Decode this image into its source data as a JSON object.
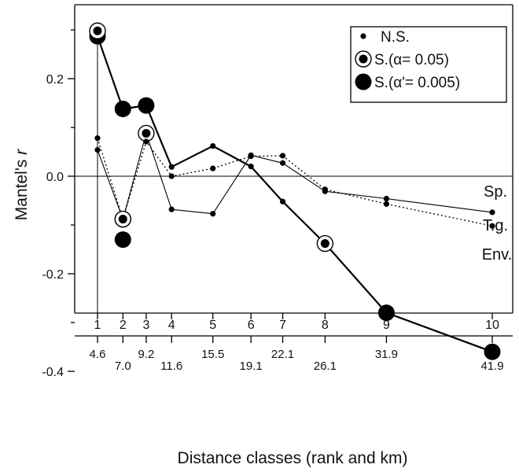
{
  "chart_data": {
    "type": "line",
    "xlabel": "Distance classes  (rank and km)",
    "ylabel_prefix": "Mantel's ",
    "ylabel_italic": "r",
    "ylim": [
      -0.4,
      0.35
    ],
    "yticks": [
      {
        "value": 0.2,
        "label": "0.2"
      },
      {
        "value": 0.0,
        "label": "0.0"
      },
      {
        "value": -0.2,
        "label": "-0.2"
      },
      {
        "value": -0.4,
        "label": "-0.4"
      }
    ],
    "x_ranks": [
      1,
      2,
      3,
      4,
      5,
      6,
      7,
      8,
      9,
      10
    ],
    "x_rank_labels": [
      "1",
      "2",
      "3",
      "4",
      "5",
      "6",
      "7",
      "8",
      "9",
      "10"
    ],
    "x_km": [
      4.6,
      7.0,
      9.2,
      11.6,
      15.5,
      19.1,
      22.1,
      26.1,
      31.9,
      41.9
    ],
    "x_km_labels": [
      "4.6",
      "7.0",
      "9.2",
      "11.6",
      "15.5",
      "19.1",
      "22.1",
      "26.1",
      "31.9",
      "41.9"
    ],
    "legend": {
      "placement": "top-right",
      "entries": [
        {
          "symbol": "ns",
          "label": "N.S."
        },
        {
          "symbol": "s05",
          "label_prefix": "S.(",
          "label_alpha": "α",
          "label_suffix": "= 0.05)"
        },
        {
          "symbol": "s005",
          "label_prefix": "S.(",
          "label_alpha": "α",
          "label_suffix": "'= 0.005)"
        }
      ]
    },
    "series": [
      {
        "name": "Sp.",
        "line_style": "solid",
        "points": [
          {
            "x": 4.6,
            "y": 0.054,
            "sig": "ns"
          },
          {
            "x": 7.0,
            "y": -0.088,
            "sig": "s05"
          },
          {
            "x": 9.2,
            "y": 0.088,
            "sig": "s05"
          },
          {
            "x": 11.6,
            "y": -0.068,
            "sig": "ns"
          },
          {
            "x": 15.5,
            "y": -0.077,
            "sig": "ns"
          },
          {
            "x": 19.1,
            "y": 0.043,
            "sig": "ns"
          },
          {
            "x": 22.1,
            "y": 0.027,
            "sig": "ns"
          },
          {
            "x": 26.1,
            "y": -0.031,
            "sig": "ns"
          },
          {
            "x": 31.9,
            "y": -0.046,
            "sig": "ns"
          },
          {
            "x": 41.9,
            "y": -0.074,
            "sig": "ns"
          }
        ]
      },
      {
        "name": "T.g.",
        "line_style": "dotted",
        "points": [
          {
            "x": 4.6,
            "y": 0.078,
            "sig": "ns"
          },
          {
            "x": 7.0,
            "y": -0.088,
            "sig": "s05"
          },
          {
            "x": 9.2,
            "y": 0.071,
            "sig": "ns"
          },
          {
            "x": 11.6,
            "y": 0.0,
            "sig": "ns"
          },
          {
            "x": 15.5,
            "y": 0.016,
            "sig": "ns"
          },
          {
            "x": 19.1,
            "y": 0.041,
            "sig": "ns"
          },
          {
            "x": 22.1,
            "y": 0.042,
            "sig": "ns"
          },
          {
            "x": 26.1,
            "y": -0.027,
            "sig": "ns"
          },
          {
            "x": 31.9,
            "y": -0.057,
            "sig": "ns"
          },
          {
            "x": 41.9,
            "y": -0.102,
            "sig": "ns"
          }
        ]
      },
      {
        "name": "Env.",
        "line_style": "solid-thick",
        "points": [
          {
            "x": 4.6,
            "y": 0.287,
            "sig": "s005"
          },
          {
            "x": 7.0,
            "y": 0.138,
            "sig": "s005"
          },
          {
            "x": 9.2,
            "y": 0.145,
            "sig": "s005"
          },
          {
            "x": 11.6,
            "y": 0.019,
            "sig": "ns"
          },
          {
            "x": 15.5,
            "y": 0.062,
            "sig": "ns"
          },
          {
            "x": 19.1,
            "y": 0.02,
            "sig": "ns"
          },
          {
            "x": 22.1,
            "y": -0.052,
            "sig": "ns"
          },
          {
            "x": 26.1,
            "y": -0.138,
            "sig": "s05"
          },
          {
            "x": 31.9,
            "y": -0.28,
            "sig": "s005"
          },
          {
            "x": 41.9,
            "y": -0.36,
            "sig": "s005"
          }
        ]
      },
      {
        "name": "",
        "line_style": "none",
        "points": [
          {
            "x": 4.6,
            "y": 0.298,
            "sig": "s05"
          },
          {
            "x": 7.0,
            "y": -0.13,
            "sig": "s005"
          }
        ]
      }
    ]
  }
}
